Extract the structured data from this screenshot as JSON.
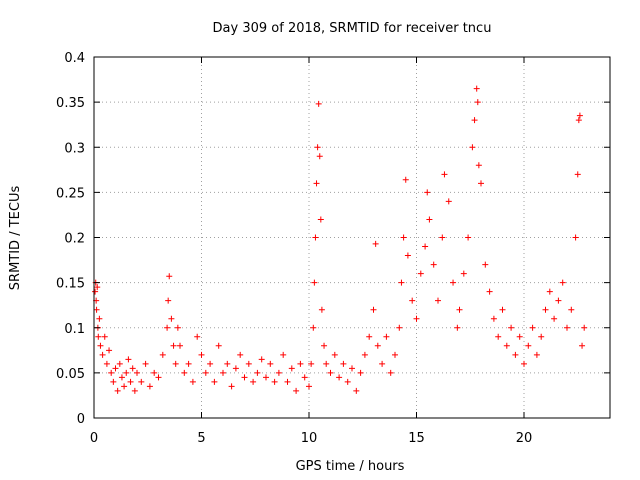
{
  "chart_data": {
    "type": "scatter",
    "title": "Day 309 of 2018, SRMTID for receiver tncu",
    "xlabel": "GPS time / hours",
    "ylabel": "SRMTID / TECUs",
    "xlim": [
      0,
      24
    ],
    "ylim": [
      0,
      0.4
    ],
    "xticks": [
      0,
      5,
      10,
      15,
      20
    ],
    "xtick_labels": [
      "0",
      "5",
      "10",
      "15",
      "20"
    ],
    "yticks": [
      0,
      0.05,
      0.1,
      0.15,
      0.2,
      0.25,
      0.3,
      0.35,
      0.4
    ],
    "ytick_labels": [
      "0",
      "0.05",
      "0.1",
      "0.15",
      "0.2",
      "0.25",
      "0.3",
      "0.35",
      "0.4"
    ],
    "grid": true,
    "marker": "plus",
    "series": [
      {
        "name": "SRMTID",
        "color": "#ff0000",
        "points": [
          [
            0.05,
            0.14
          ],
          [
            0.08,
            0.15
          ],
          [
            0.1,
            0.13
          ],
          [
            0.12,
            0.12
          ],
          [
            0.15,
            0.145
          ],
          [
            0.18,
            0.1
          ],
          [
            0.2,
            0.09
          ],
          [
            0.25,
            0.11
          ],
          [
            0.3,
            0.08
          ],
          [
            0.4,
            0.07
          ],
          [
            0.5,
            0.09
          ],
          [
            0.6,
            0.06
          ],
          [
            0.7,
            0.075
          ],
          [
            0.8,
            0.05
          ],
          [
            0.9,
            0.04
          ],
          [
            1.0,
            0.055
          ],
          [
            1.1,
            0.03
          ],
          [
            1.2,
            0.06
          ],
          [
            1.3,
            0.045
          ],
          [
            1.4,
            0.035
          ],
          [
            1.5,
            0.05
          ],
          [
            1.6,
            0.065
          ],
          [
            1.7,
            0.04
          ],
          [
            1.8,
            0.055
          ],
          [
            1.9,
            0.03
          ],
          [
            2.0,
            0.05
          ],
          [
            2.2,
            0.04
          ],
          [
            2.4,
            0.06
          ],
          [
            2.6,
            0.035
          ],
          [
            2.8,
            0.05
          ],
          [
            3.0,
            0.045
          ],
          [
            3.2,
            0.07
          ],
          [
            3.4,
            0.1
          ],
          [
            3.45,
            0.13
          ],
          [
            3.5,
            0.157
          ],
          [
            3.6,
            0.11
          ],
          [
            3.7,
            0.08
          ],
          [
            3.8,
            0.06
          ],
          [
            3.9,
            0.1
          ],
          [
            4.0,
            0.08
          ],
          [
            4.2,
            0.05
          ],
          [
            4.4,
            0.06
          ],
          [
            4.6,
            0.04
          ],
          [
            4.8,
            0.09
          ],
          [
            5.0,
            0.07
          ],
          [
            5.2,
            0.05
          ],
          [
            5.4,
            0.06
          ],
          [
            5.6,
            0.04
          ],
          [
            5.8,
            0.08
          ],
          [
            6.0,
            0.05
          ],
          [
            6.2,
            0.06
          ],
          [
            6.4,
            0.035
          ],
          [
            6.6,
            0.055
          ],
          [
            6.8,
            0.07
          ],
          [
            7.0,
            0.045
          ],
          [
            7.2,
            0.06
          ],
          [
            7.4,
            0.04
          ],
          [
            7.6,
            0.05
          ],
          [
            7.8,
            0.065
          ],
          [
            8.0,
            0.045
          ],
          [
            8.2,
            0.06
          ],
          [
            8.4,
            0.04
          ],
          [
            8.6,
            0.05
          ],
          [
            8.8,
            0.07
          ],
          [
            9.0,
            0.04
          ],
          [
            9.2,
            0.055
          ],
          [
            9.4,
            0.03
          ],
          [
            9.6,
            0.06
          ],
          [
            9.8,
            0.045
          ],
          [
            10.0,
            0.035
          ],
          [
            10.1,
            0.06
          ],
          [
            10.2,
            0.1
          ],
          [
            10.25,
            0.15
          ],
          [
            10.3,
            0.2
          ],
          [
            10.35,
            0.26
          ],
          [
            10.4,
            0.3
          ],
          [
            10.45,
            0.348
          ],
          [
            10.5,
            0.29
          ],
          [
            10.55,
            0.22
          ],
          [
            10.6,
            0.12
          ],
          [
            10.7,
            0.08
          ],
          [
            10.8,
            0.06
          ],
          [
            11.0,
            0.05
          ],
          [
            11.2,
            0.07
          ],
          [
            11.4,
            0.045
          ],
          [
            11.6,
            0.06
          ],
          [
            11.8,
            0.04
          ],
          [
            12.0,
            0.055
          ],
          [
            12.2,
            0.03
          ],
          [
            12.4,
            0.05
          ],
          [
            12.6,
            0.07
          ],
          [
            12.8,
            0.09
          ],
          [
            13.0,
            0.12
          ],
          [
            13.1,
            0.193
          ],
          [
            13.2,
            0.08
          ],
          [
            13.4,
            0.06
          ],
          [
            13.6,
            0.09
          ],
          [
            13.8,
            0.05
          ],
          [
            14.0,
            0.07
          ],
          [
            14.2,
            0.1
          ],
          [
            14.3,
            0.15
          ],
          [
            14.4,
            0.2
          ],
          [
            14.5,
            0.264
          ],
          [
            14.6,
            0.18
          ],
          [
            14.8,
            0.13
          ],
          [
            15.0,
            0.11
          ],
          [
            15.2,
            0.16
          ],
          [
            15.4,
            0.19
          ],
          [
            15.5,
            0.25
          ],
          [
            15.6,
            0.22
          ],
          [
            15.8,
            0.17
          ],
          [
            16.0,
            0.13
          ],
          [
            16.2,
            0.2
          ],
          [
            16.3,
            0.27
          ],
          [
            16.5,
            0.24
          ],
          [
            16.7,
            0.15
          ],
          [
            16.9,
            0.1
          ],
          [
            17.0,
            0.12
          ],
          [
            17.2,
            0.16
          ],
          [
            17.4,
            0.2
          ],
          [
            17.6,
            0.3
          ],
          [
            17.7,
            0.33
          ],
          [
            17.8,
            0.365
          ],
          [
            17.85,
            0.35
          ],
          [
            17.9,
            0.28
          ],
          [
            18.0,
            0.26
          ],
          [
            18.2,
            0.17
          ],
          [
            18.4,
            0.14
          ],
          [
            18.6,
            0.11
          ],
          [
            18.8,
            0.09
          ],
          [
            19.0,
            0.12
          ],
          [
            19.2,
            0.08
          ],
          [
            19.4,
            0.1
          ],
          [
            19.6,
            0.07
          ],
          [
            19.8,
            0.09
          ],
          [
            20.0,
            0.06
          ],
          [
            20.2,
            0.08
          ],
          [
            20.4,
            0.1
          ],
          [
            20.6,
            0.07
          ],
          [
            20.8,
            0.09
          ],
          [
            21.0,
            0.12
          ],
          [
            21.2,
            0.14
          ],
          [
            21.4,
            0.11
          ],
          [
            21.6,
            0.13
          ],
          [
            21.8,
            0.15
          ],
          [
            22.0,
            0.1
          ],
          [
            22.2,
            0.12
          ],
          [
            22.4,
            0.2
          ],
          [
            22.5,
            0.27
          ],
          [
            22.55,
            0.33
          ],
          [
            22.6,
            0.335
          ],
          [
            22.7,
            0.08
          ],
          [
            22.8,
            0.1
          ]
        ]
      }
    ]
  }
}
